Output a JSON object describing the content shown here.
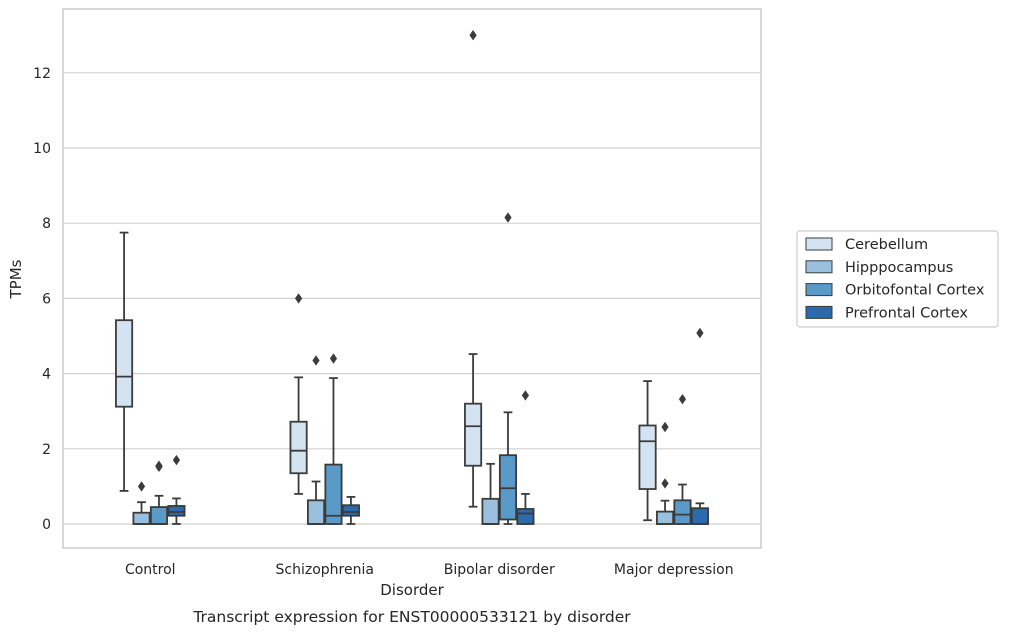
{
  "chart_data": {
    "type": "box",
    "caption": "Transcript expression for ENST00000533121 by disorder",
    "xlabel": "Disorder",
    "ylabel": "TPMs",
    "categories": [
      "Control",
      "Schizophrenia",
      "Bipolar disorder",
      "Major depression"
    ],
    "ylim": [
      -0.65,
      13.8
    ],
    "yticks": [
      0,
      2,
      4,
      6,
      8,
      10,
      12
    ],
    "grid": true,
    "legend_position": "right",
    "series": [
      {
        "name": "Cerebellum",
        "color": "#d4e3f2",
        "boxes": [
          {
            "min": 0.88,
            "q1": 3.12,
            "median": 3.92,
            "q3": 5.42,
            "max": 7.75,
            "outliers": []
          },
          {
            "min": 0.8,
            "q1": 1.35,
            "median": 1.95,
            "q3": 2.72,
            "max": 3.9,
            "outliers": [
              6.0
            ]
          },
          {
            "min": 0.46,
            "q1": 1.55,
            "median": 2.6,
            "q3": 3.2,
            "max": 4.52,
            "outliers": [
              13.0
            ]
          },
          {
            "min": 0.1,
            "q1": 0.93,
            "median": 2.2,
            "q3": 2.62,
            "max": 3.8,
            "outliers": []
          }
        ]
      },
      {
        "name": "Hipppocampus",
        "color": "#99c1df",
        "boxes": [
          {
            "min": 0.0,
            "q1": 0.0,
            "median": 0.0,
            "q3": 0.3,
            "max": 0.58,
            "outliers": [
              1.0
            ]
          },
          {
            "min": 0.0,
            "q1": 0.0,
            "median": 0.0,
            "q3": 0.63,
            "max": 1.13,
            "outliers": [
              4.35
            ]
          },
          {
            "min": 0.0,
            "q1": 0.0,
            "median": 0.0,
            "q3": 0.67,
            "max": 1.6,
            "outliers": []
          },
          {
            "min": 0.0,
            "q1": 0.0,
            "median": 0.0,
            "q3": 0.33,
            "max": 0.62,
            "outliers": [
              1.08,
              2.58
            ]
          }
        ]
      },
      {
        "name": "Orbitofontal Cortex",
        "color": "#5a9ac8",
        "boxes": [
          {
            "min": 0.0,
            "q1": 0.0,
            "median": 0.0,
            "q3": 0.45,
            "max": 0.75,
            "outliers": [
              1.52,
              1.55
            ]
          },
          {
            "min": 0.0,
            "q1": 0.0,
            "median": 0.22,
            "q3": 1.58,
            "max": 3.88,
            "outliers": [
              4.4
            ]
          },
          {
            "min": 0.0,
            "q1": 0.12,
            "median": 0.95,
            "q3": 1.83,
            "max": 2.97,
            "outliers": [
              8.15
            ]
          },
          {
            "min": 0.0,
            "q1": 0.0,
            "median": 0.25,
            "q3": 0.63,
            "max": 1.05,
            "outliers": [
              3.32
            ]
          }
        ]
      },
      {
        "name": "Prefrontal Cortex",
        "color": "#2a6aad",
        "boxes": [
          {
            "min": 0.0,
            "q1": 0.22,
            "median": 0.32,
            "q3": 0.48,
            "max": 0.68,
            "outliers": [
              1.7
            ]
          },
          {
            "min": 0.0,
            "q1": 0.22,
            "median": 0.32,
            "q3": 0.5,
            "max": 0.72,
            "outliers": []
          },
          {
            "min": 0.0,
            "q1": 0.0,
            "median": 0.28,
            "q3": 0.4,
            "max": 0.8,
            "outliers": [
              3.42
            ]
          },
          {
            "min": 0.0,
            "q1": 0.0,
            "median": 0.0,
            "q3": 0.42,
            "max": 0.55,
            "outliers": [
              5.08
            ]
          }
        ]
      }
    ]
  }
}
